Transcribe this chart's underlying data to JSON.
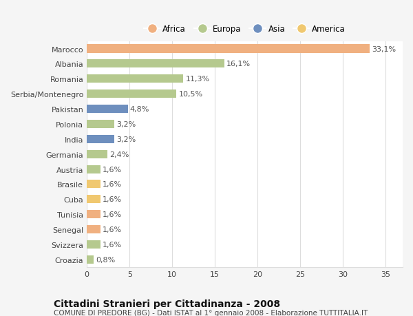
{
  "categories": [
    "Croazia",
    "Svizzera",
    "Senegal",
    "Tunisia",
    "Cuba",
    "Brasile",
    "Austria",
    "Germania",
    "India",
    "Polonia",
    "Pakistan",
    "Serbia/Montenegro",
    "Romania",
    "Albania",
    "Marocco"
  ],
  "values": [
    0.8,
    1.6,
    1.6,
    1.6,
    1.6,
    1.6,
    1.6,
    2.4,
    3.2,
    3.2,
    4.8,
    10.5,
    11.3,
    16.1,
    33.1
  ],
  "labels": [
    "0,8%",
    "1,6%",
    "1,6%",
    "1,6%",
    "1,6%",
    "1,6%",
    "1,6%",
    "2,4%",
    "3,2%",
    "3,2%",
    "4,8%",
    "10,5%",
    "11,3%",
    "16,1%",
    "33,1%"
  ],
  "colors": [
    "#b5c98e",
    "#b5c98e",
    "#f0b080",
    "#f0b080",
    "#f0c870",
    "#f0c870",
    "#b5c98e",
    "#b5c98e",
    "#6e8fbe",
    "#b5c98e",
    "#6e8fbe",
    "#b5c98e",
    "#b5c98e",
    "#b5c98e",
    "#f0b080"
  ],
  "legend_labels": [
    "Africa",
    "Europa",
    "Asia",
    "America"
  ],
  "legend_colors": [
    "#f0b080",
    "#b5c98e",
    "#6e8fbe",
    "#f0c870"
  ],
  "title": "Cittadini Stranieri per Cittadinanza - 2008",
  "subtitle": "COMUNE DI PREDORE (BG) - Dati ISTAT al 1° gennaio 2008 - Elaborazione TUTTITALIA.IT",
  "xlim": [
    0,
    37
  ],
  "xticks": [
    0,
    5,
    10,
    15,
    20,
    25,
    30,
    35
  ],
  "bar_height": 0.55,
  "background_color": "#f5f5f5",
  "plot_bg_color": "#ffffff",
  "grid_color": "#dddddd",
  "label_fontsize": 8,
  "tick_fontsize": 8,
  "title_fontsize": 10,
  "subtitle_fontsize": 7.5
}
